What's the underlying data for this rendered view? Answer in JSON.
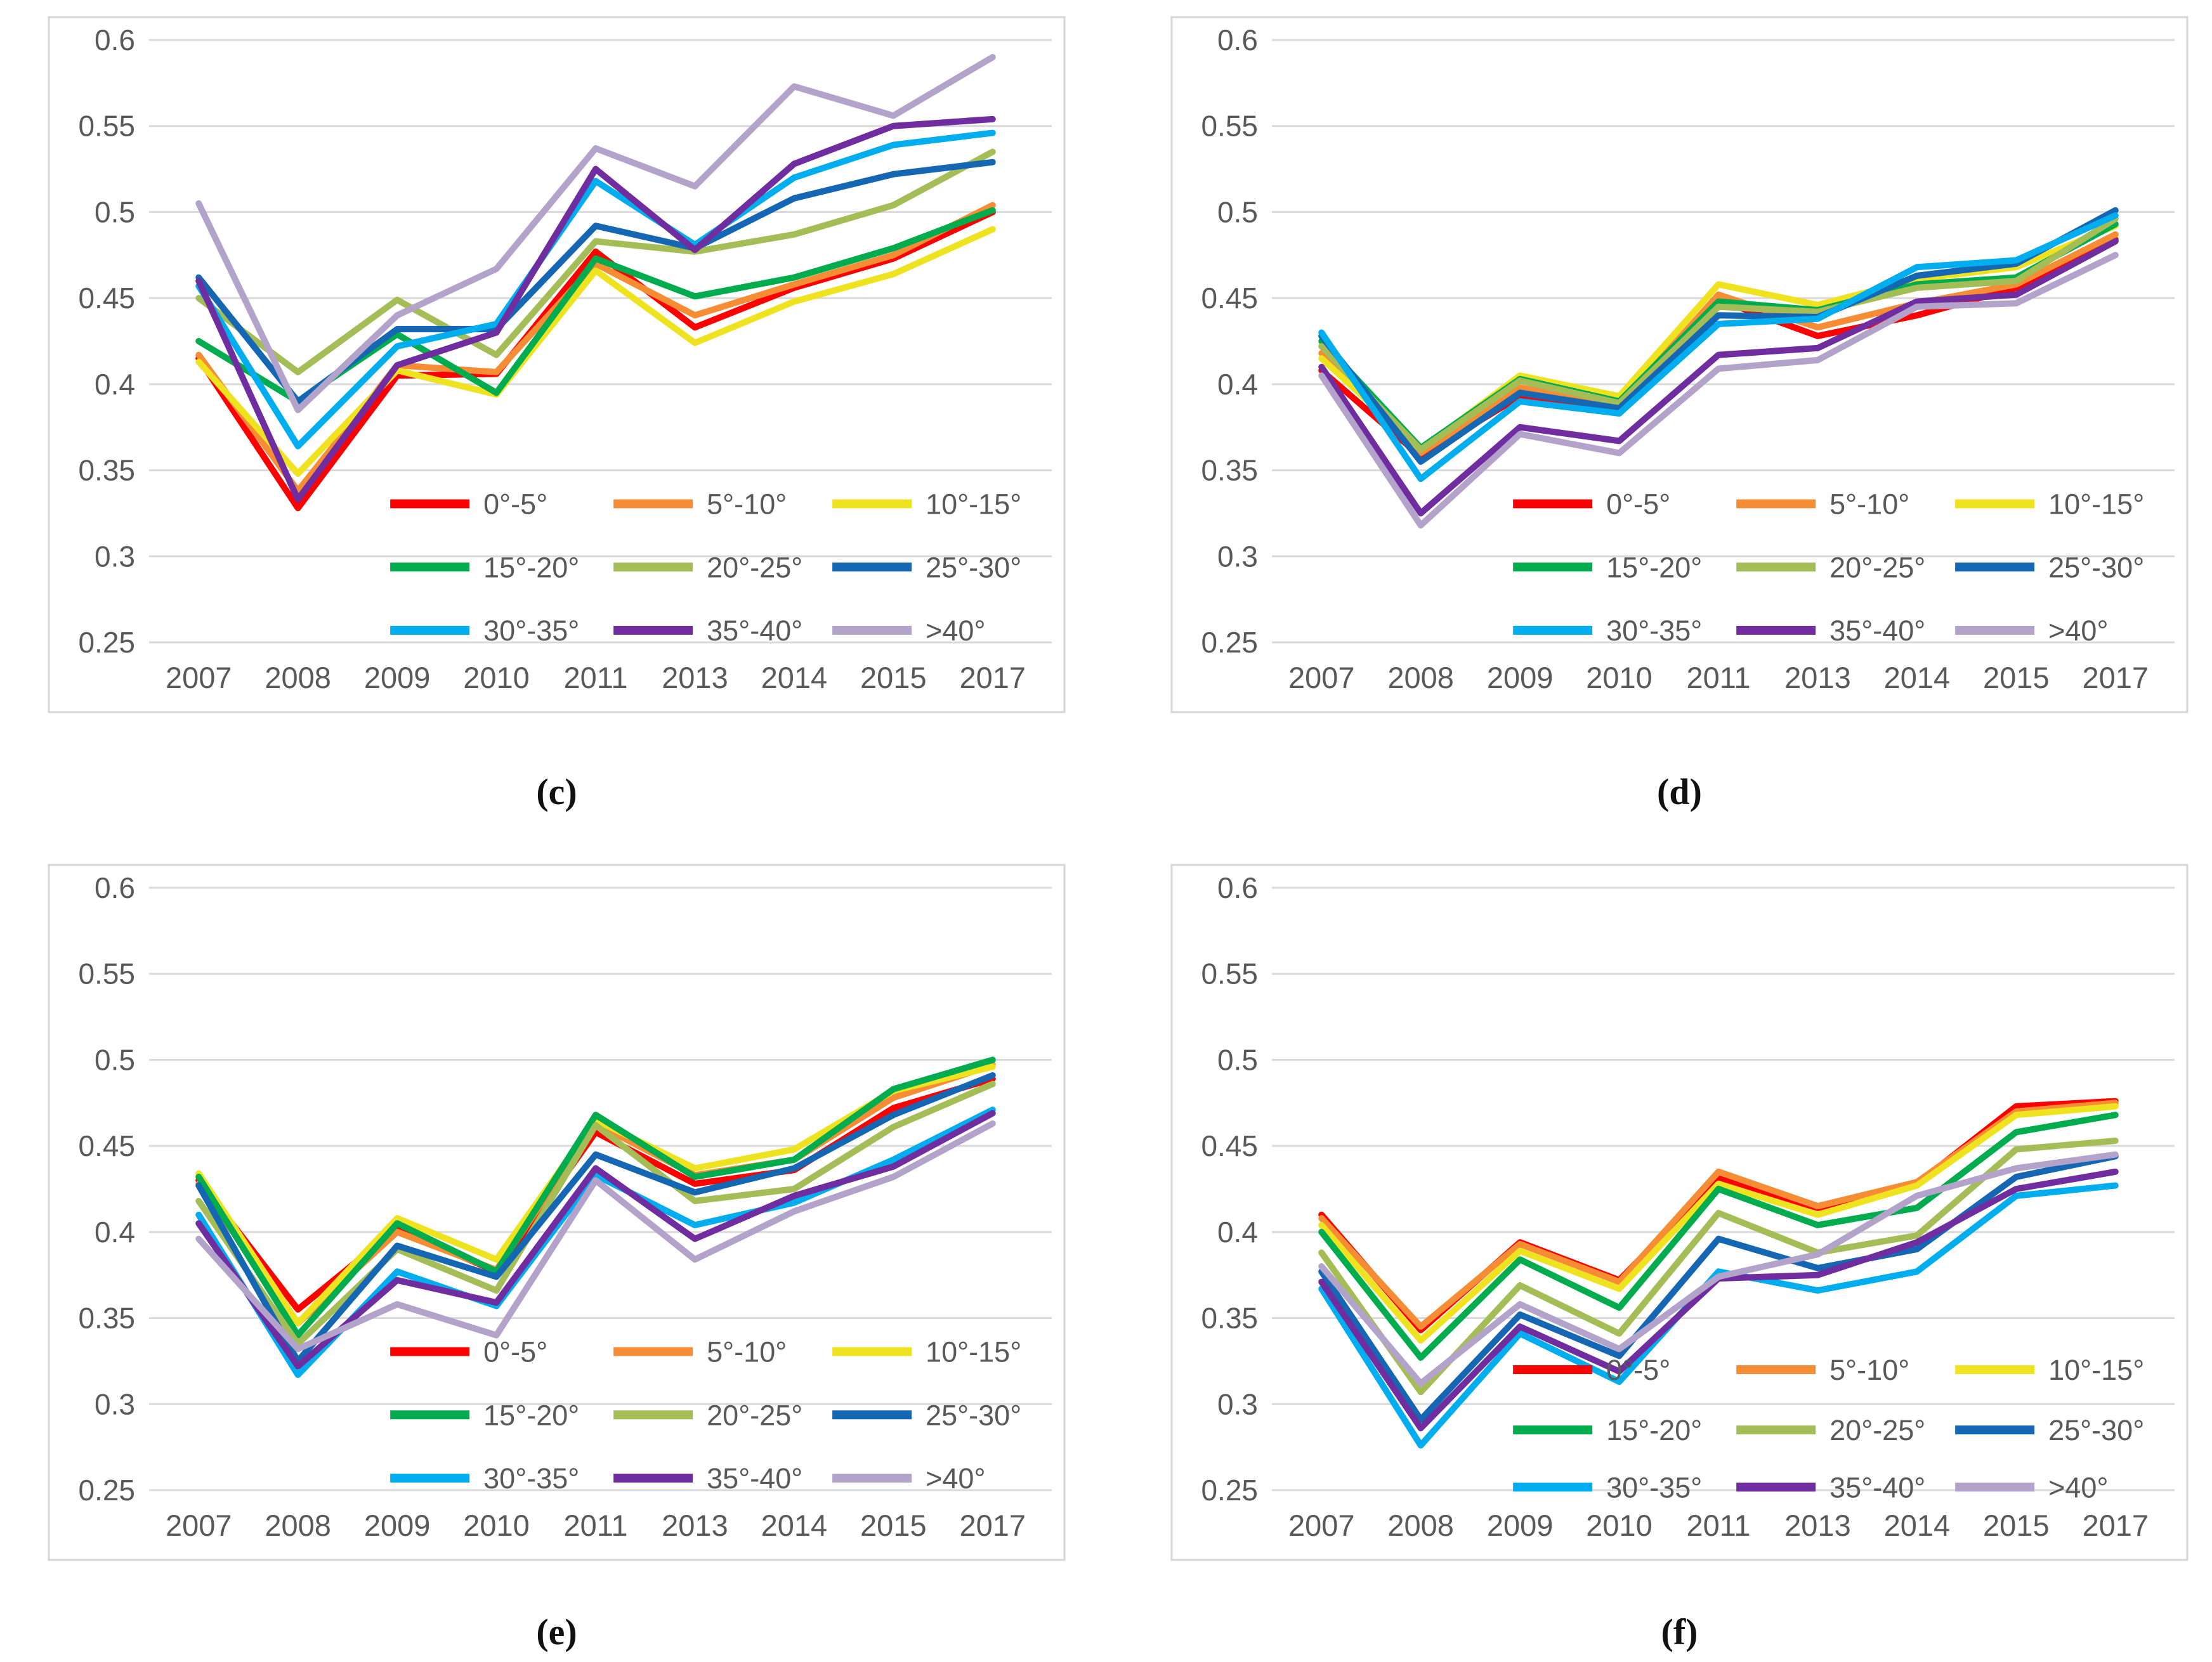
{
  "figure": {
    "background_color": "#FFFFFF",
    "axis_text_color": "#595959",
    "grid_color": "#D9D9D9",
    "panel_border_color": "#D6D6D6"
  },
  "chart_data": {
    "type": "line",
    "categories": [
      "2007",
      "2008",
      "2009",
      "2010",
      "2011",
      "2013",
      "2014",
      "2015",
      "2017"
    ],
    "xlabel": "",
    "ylabel": "",
    "ylim": [
      0.25,
      0.6
    ],
    "ytick_step": 0.05,
    "ytick_labels": [
      "0.6",
      "0.55",
      "0.5",
      "0.45",
      "0.4",
      "0.35",
      "0.3",
      "0.25"
    ],
    "grid": true,
    "legend_position": "inside-bottom",
    "legend_labels": [
      "0°-5°",
      "5°-10°",
      "10°-15°",
      "15°-20°",
      "20°-25°",
      "25°-30°",
      "30°-35°",
      "35°-40°",
      ">40°"
    ],
    "series_colors": [
      "#FF0000",
      "#F68C33",
      "#EEE31E",
      "#00AC4E",
      "#A5BD56",
      "#1567B3",
      "#00AEEF",
      "#6F2DA0",
      "#B3A2C9"
    ],
    "panels": [
      {
        "label": "(c)",
        "legend_row_fracs": [
          0.77,
          0.875,
          0.98
        ],
        "series": [
          {
            "name": "0°-5°",
            "color": "#FF0000",
            "values": [
              0.415,
              0.328,
              0.405,
              0.406,
              0.477,
              0.433,
              0.456,
              0.473,
              0.5
            ]
          },
          {
            "name": "5°-10°",
            "color": "#F68C33",
            "values": [
              0.417,
              0.338,
              0.411,
              0.407,
              0.47,
              0.44,
              0.458,
              0.475,
              0.504
            ]
          },
          {
            "name": "10°-15°",
            "color": "#EEE31E",
            "values": [
              0.413,
              0.348,
              0.408,
              0.394,
              0.466,
              0.424,
              0.448,
              0.464,
              0.49
            ]
          },
          {
            "name": "15°-20°",
            "color": "#00AC4E",
            "values": [
              0.425,
              0.39,
              0.429,
              0.395,
              0.473,
              0.451,
              0.462,
              0.479,
              0.501
            ]
          },
          {
            "name": "20°-25°",
            "color": "#A5BD56",
            "values": [
              0.45,
              0.407,
              0.449,
              0.417,
              0.483,
              0.477,
              0.487,
              0.504,
              0.535
            ]
          },
          {
            "name": "25°-30°",
            "color": "#1567B3",
            "values": [
              0.462,
              0.39,
              0.432,
              0.432,
              0.492,
              0.479,
              0.508,
              0.522,
              0.529
            ]
          },
          {
            "name": "30°-35°",
            "color": "#00AEEF",
            "values": [
              0.457,
              0.364,
              0.422,
              0.435,
              0.518,
              0.481,
              0.52,
              0.539,
              0.546
            ]
          },
          {
            "name": "35°-40°",
            "color": "#6F2DA0",
            "values": [
              0.46,
              0.333,
              0.411,
              0.43,
              0.525,
              0.478,
              0.528,
              0.55,
              0.554
            ]
          },
          {
            "name": ">40°",
            "color": "#B3A2C9",
            "values": [
              0.505,
              0.385,
              0.44,
              0.467,
              0.537,
              0.515,
              0.573,
              0.556,
              0.59
            ]
          }
        ]
      },
      {
        "label": "(d)",
        "legend_row_fracs": [
          0.77,
          0.875,
          0.98
        ],
        "series": [
          {
            "name": "0°-5°",
            "color": "#FF0000",
            "values": [
              0.408,
              0.358,
              0.393,
              0.387,
              0.449,
              0.428,
              0.44,
              0.456,
              0.484
            ]
          },
          {
            "name": "5°-10°",
            "color": "#F68C33",
            "values": [
              0.418,
              0.36,
              0.398,
              0.388,
              0.452,
              0.433,
              0.447,
              0.458,
              0.487
            ]
          },
          {
            "name": "10°-15°",
            "color": "#EEE31E",
            "values": [
              0.415,
              0.362,
              0.405,
              0.393,
              0.458,
              0.446,
              0.461,
              0.468,
              0.492
            ]
          },
          {
            "name": "15°-20°",
            "color": "#00AC4E",
            "values": [
              0.425,
              0.363,
              0.403,
              0.39,
              0.448,
              0.443,
              0.458,
              0.462,
              0.493
            ]
          },
          {
            "name": "20°-25°",
            "color": "#A5BD56",
            "values": [
              0.422,
              0.362,
              0.402,
              0.389,
              0.445,
              0.442,
              0.456,
              0.46,
              0.496
            ]
          },
          {
            "name": "25°-30°",
            "color": "#1567B3",
            "values": [
              0.428,
              0.355,
              0.395,
              0.386,
              0.44,
              0.439,
              0.463,
              0.47,
              0.501
            ]
          },
          {
            "name": "30°-35°",
            "color": "#00AEEF",
            "values": [
              0.43,
              0.345,
              0.39,
              0.383,
              0.435,
              0.438,
              0.468,
              0.472,
              0.498
            ]
          },
          {
            "name": "35°-40°",
            "color": "#6F2DA0",
            "values": [
              0.41,
              0.325,
              0.375,
              0.367,
              0.417,
              0.421,
              0.448,
              0.452,
              0.483
            ]
          },
          {
            "name": ">40°",
            "color": "#B3A2C9",
            "values": [
              0.405,
              0.318,
              0.371,
              0.36,
              0.409,
              0.414,
              0.445,
              0.447,
              0.475
            ]
          }
        ]
      },
      {
        "label": "(e)",
        "legend_row_fracs": [
          0.77,
          0.875,
          0.98
        ],
        "series": [
          {
            "name": "0°-5°",
            "color": "#FF0000",
            "values": [
              0.43,
              0.355,
              0.402,
              0.377,
              0.458,
              0.428,
              0.436,
              0.472,
              0.489
            ]
          },
          {
            "name": "5°-10°",
            "color": "#F68C33",
            "values": [
              0.428,
              0.347,
              0.4,
              0.378,
              0.463,
              0.433,
              0.442,
              0.478,
              0.497
            ]
          },
          {
            "name": "10°-15°",
            "color": "#EEE31E",
            "values": [
              0.434,
              0.347,
              0.408,
              0.384,
              0.465,
              0.437,
              0.448,
              0.482,
              0.496
            ]
          },
          {
            "name": "15°-20°",
            "color": "#00AC4E",
            "values": [
              0.432,
              0.34,
              0.405,
              0.377,
              0.468,
              0.432,
              0.442,
              0.483,
              0.5
            ]
          },
          {
            "name": "20°-25°",
            "color": "#A5BD56",
            "values": [
              0.418,
              0.335,
              0.39,
              0.366,
              0.462,
              0.418,
              0.425,
              0.461,
              0.486
            ]
          },
          {
            "name": "25°-30°",
            "color": "#1567B3",
            "values": [
              0.427,
              0.325,
              0.392,
              0.374,
              0.445,
              0.423,
              0.437,
              0.468,
              0.491
            ]
          },
          {
            "name": "30°-35°",
            "color": "#00AEEF",
            "values": [
              0.41,
              0.317,
              0.377,
              0.357,
              0.433,
              0.404,
              0.417,
              0.442,
              0.471
            ]
          },
          {
            "name": "35°-40°",
            "color": "#6F2DA0",
            "values": [
              0.405,
              0.322,
              0.372,
              0.359,
              0.437,
              0.396,
              0.421,
              0.438,
              0.469
            ]
          },
          {
            "name": ">40°",
            "color": "#B3A2C9",
            "values": [
              0.396,
              0.332,
              0.358,
              0.34,
              0.43,
              0.384,
              0.412,
              0.432,
              0.463
            ]
          }
        ]
      },
      {
        "label": "(f)",
        "legend_row_fracs": [
          0.8,
          0.9,
          0.995
        ],
        "series": [
          {
            "name": "0°-5°",
            "color": "#FF0000",
            "values": [
              0.41,
              0.343,
              0.394,
              0.372,
              0.431,
              0.414,
              0.428,
              0.473,
              0.476
            ]
          },
          {
            "name": "5°-10°",
            "color": "#F68C33",
            "values": [
              0.408,
              0.345,
              0.393,
              0.371,
              0.435,
              0.415,
              0.429,
              0.47,
              0.475
            ]
          },
          {
            "name": "10°-15°",
            "color": "#EEE31E",
            "values": [
              0.404,
              0.337,
              0.389,
              0.367,
              0.428,
              0.41,
              0.427,
              0.468,
              0.473
            ]
          },
          {
            "name": "15°-20°",
            "color": "#00AC4E",
            "values": [
              0.4,
              0.327,
              0.384,
              0.356,
              0.425,
              0.404,
              0.414,
              0.458,
              0.468
            ]
          },
          {
            "name": "20°-25°",
            "color": "#A5BD56",
            "values": [
              0.388,
              0.307,
              0.369,
              0.341,
              0.411,
              0.388,
              0.398,
              0.448,
              0.453
            ]
          },
          {
            "name": "25°-30°",
            "color": "#1567B3",
            "values": [
              0.377,
              0.291,
              0.352,
              0.328,
              0.396,
              0.379,
              0.39,
              0.432,
              0.444
            ]
          },
          {
            "name": "30°-35°",
            "color": "#00AEEF",
            "values": [
              0.367,
              0.276,
              0.341,
              0.313,
              0.377,
              0.366,
              0.377,
              0.421,
              0.427
            ]
          },
          {
            "name": "35°-40°",
            "color": "#6F2DA0",
            "values": [
              0.371,
              0.286,
              0.345,
              0.319,
              0.373,
              0.375,
              0.394,
              0.425,
              0.435
            ]
          },
          {
            "name": ">40°",
            "color": "#B3A2C9",
            "values": [
              0.38,
              0.312,
              0.358,
              0.332,
              0.374,
              0.387,
              0.421,
              0.437,
              0.445
            ]
          }
        ]
      }
    ]
  }
}
